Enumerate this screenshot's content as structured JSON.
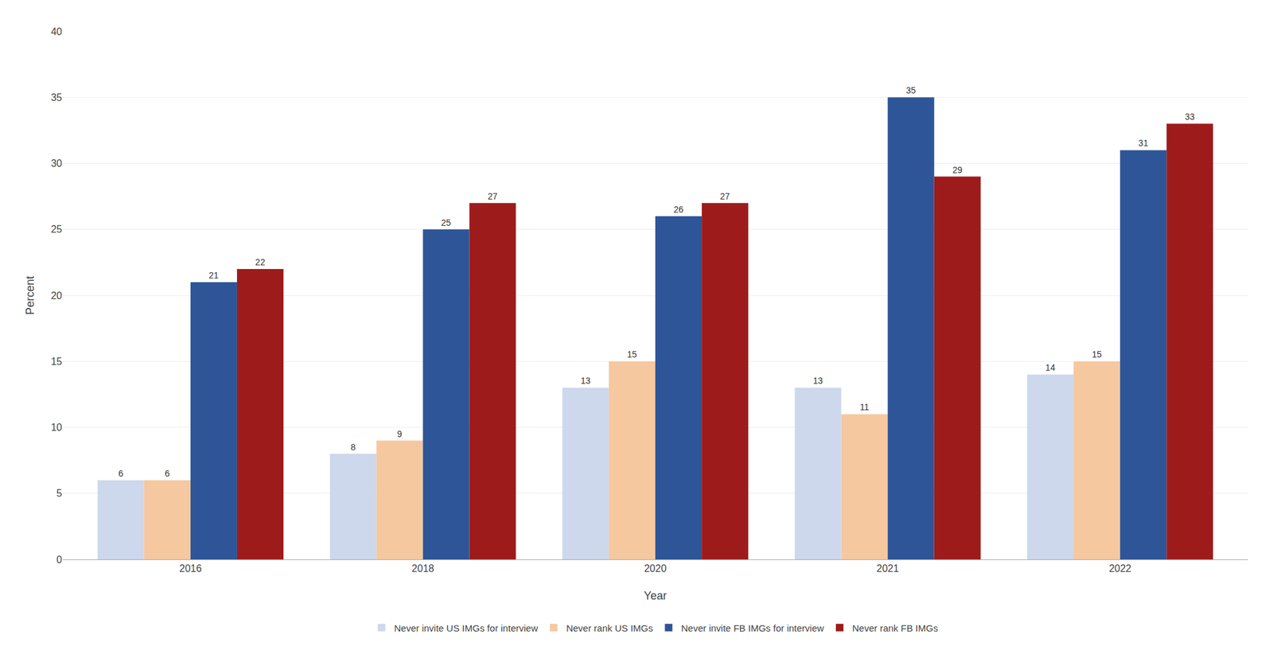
{
  "chart_data": {
    "type": "bar",
    "xlabel": "Year",
    "ylabel": "Percent",
    "categories": [
      "2016",
      "2018",
      "2020",
      "2021",
      "2022"
    ],
    "series": [
      {
        "name": "Never invite US IMGs for interview",
        "color": "#cdd8ec",
        "values": [
          6,
          8,
          13,
          13,
          14
        ]
      },
      {
        "name": "Never rank US IMGs",
        "color": "#f5c8a0",
        "values": [
          6,
          9,
          15,
          11,
          15
        ]
      },
      {
        "name": "Never invite FB IMGs for interview",
        "color": "#2e5597",
        "values": [
          21,
          25,
          26,
          35,
          31
        ]
      },
      {
        "name": "Never rank FB IMGs",
        "color": "#9e1b1b",
        "values": [
          22,
          27,
          27,
          29,
          33
        ]
      }
    ],
    "ylim": [
      0,
      40
    ],
    "yticks": [
      0,
      5,
      10,
      15,
      20,
      25,
      30,
      35,
      40
    ],
    "grid": true,
    "legend": "bottom",
    "data_labels": true
  }
}
